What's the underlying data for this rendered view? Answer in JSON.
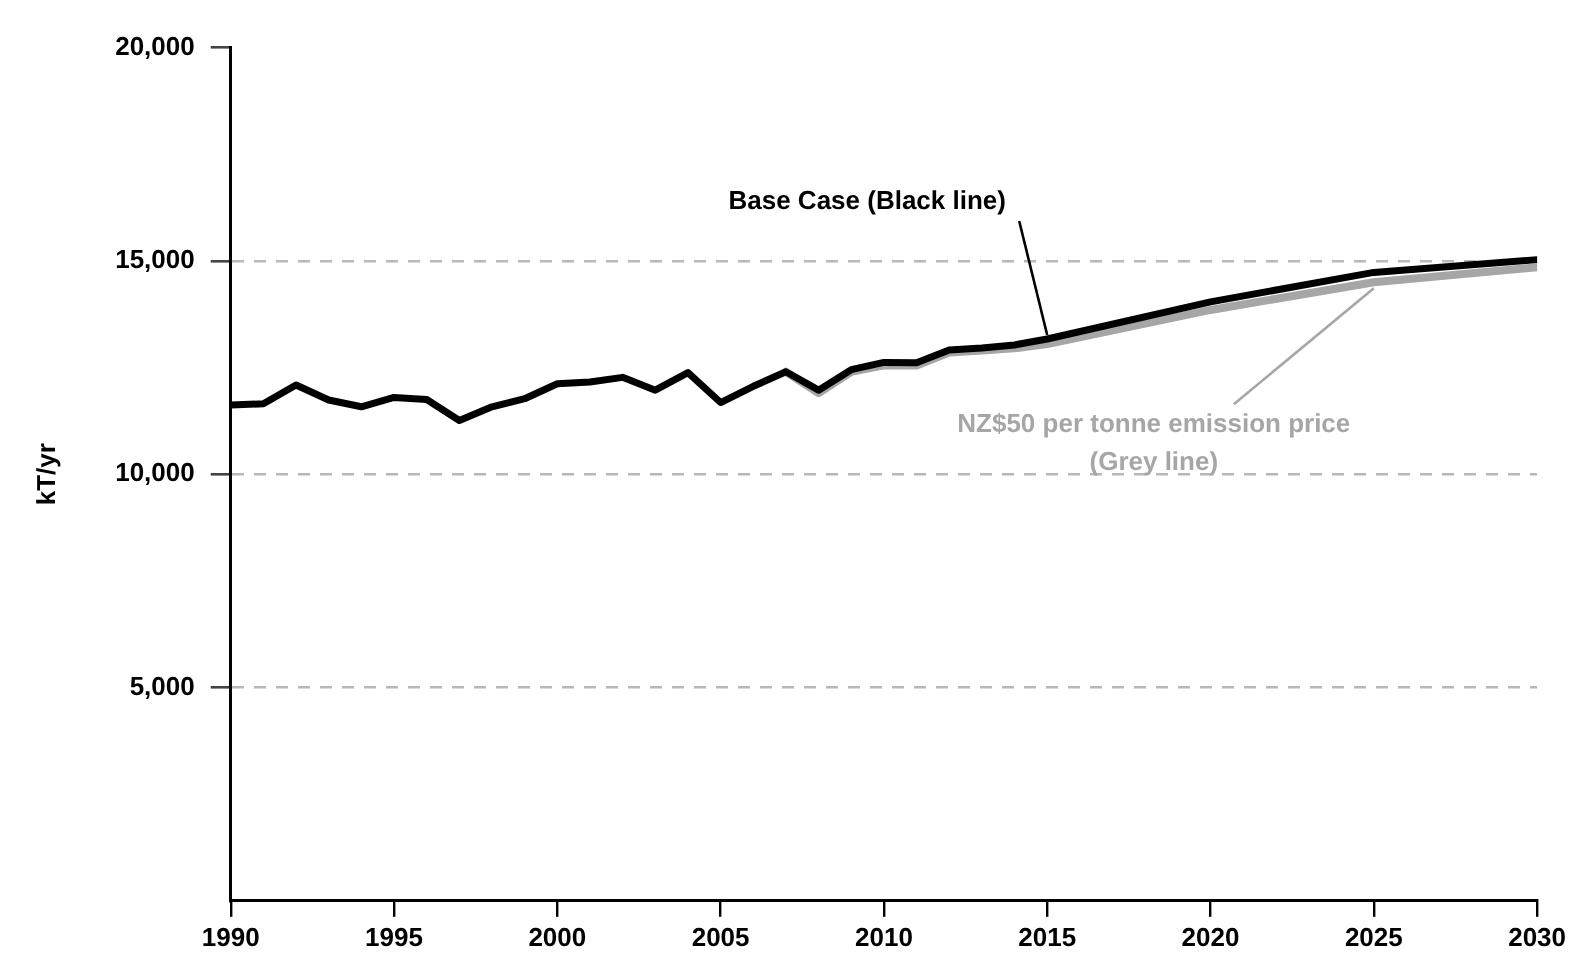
{
  "chart_data": {
    "type": "line",
    "ylabel": "kT/yr",
    "x": [
      1990,
      1991,
      1992,
      1993,
      1994,
      1995,
      1996,
      1997,
      1998,
      1999,
      2000,
      2001,
      2002,
      2003,
      2004,
      2005,
      2006,
      2007,
      2008,
      2009,
      2010,
      2011,
      2012,
      2013,
      2014,
      2015,
      2020,
      2025,
      2030
    ],
    "series": [
      {
        "name": "NZ$50 per tonne emission price (Grey line)",
        "color": "#a6a6a6",
        "values": [
          null,
          null,
          null,
          null,
          null,
          null,
          null,
          null,
          null,
          null,
          null,
          null,
          null,
          null,
          null,
          null,
          null,
          12400,
          11900,
          12400,
          12550,
          12550,
          12850,
          12900,
          12950,
          13050,
          13850,
          14500,
          14850
        ]
      },
      {
        "name": "Base Case (Black line)",
        "color": "#000000",
        "values": [
          11620,
          11650,
          12090,
          11740,
          11580,
          11800,
          11750,
          11260,
          11580,
          11770,
          12120,
          12160,
          12270,
          11970,
          12380,
          11680,
          12060,
          12400,
          11970,
          12450,
          12620,
          12610,
          12910,
          12960,
          13030,
          13170,
          14040,
          14730,
          15030
        ]
      }
    ],
    "xlim": [
      1990,
      2030
    ],
    "xticks": [
      1990,
      1995,
      2000,
      2005,
      2010,
      2015,
      2020,
      2025,
      2030
    ],
    "ylim": [
      0,
      20000
    ],
    "yticks": [
      {
        "value": 5000,
        "label": "5,000"
      },
      {
        "value": 10000,
        "label": "10,000"
      },
      {
        "value": 15000,
        "label": "15,000"
      },
      {
        "value": 20000,
        "label": "20,000"
      }
    ],
    "grid": "y",
    "marker": "none",
    "line_style": "solid",
    "legend": false
  }
}
